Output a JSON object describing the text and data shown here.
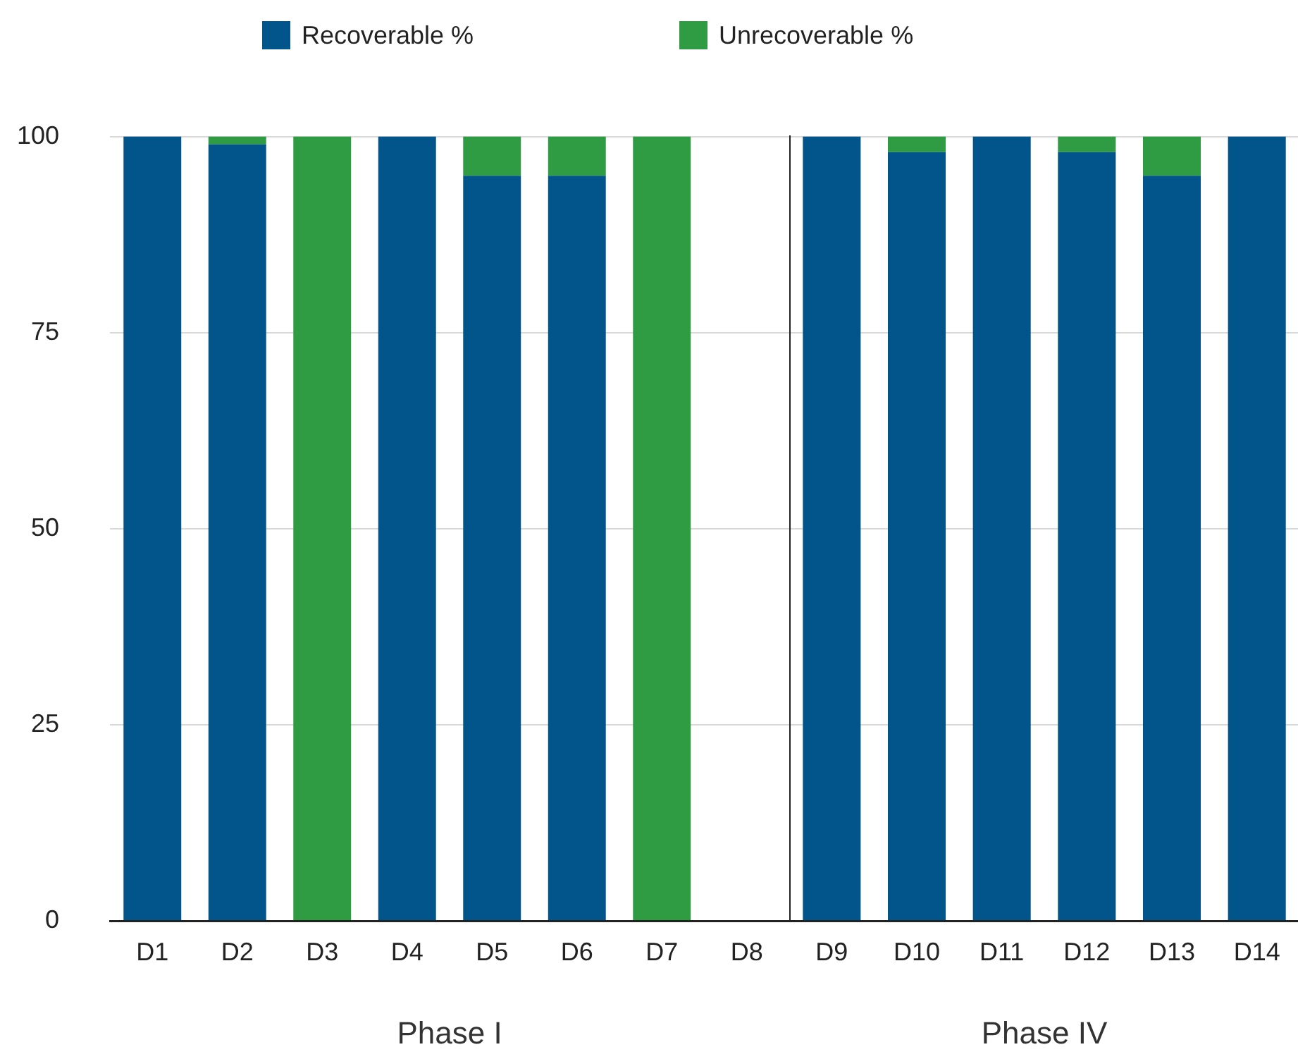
{
  "chart_data": [
    {
      "type": "bar",
      "stacked": true,
      "categories": [
        "D1",
        "D2",
        "D3",
        "D4",
        "D5",
        "D6",
        "D7",
        "D8"
      ],
      "xlabel": "Phase I",
      "series": [
        {
          "name": "Recoverable %",
          "color": "#02558b",
          "values": [
            100,
            99,
            0,
            100,
            95,
            95,
            0,
            null
          ]
        },
        {
          "name": "Unrecoverable %",
          "color": "#2f9b43",
          "values": [
            0,
            1,
            100,
            0,
            5,
            5,
            100,
            null
          ]
        }
      ],
      "ylim": [
        0,
        100
      ],
      "yticks": [
        0,
        25,
        50,
        75,
        100
      ],
      "grid": "y",
      "legend": "top"
    },
    {
      "type": "bar",
      "stacked": true,
      "categories": [
        "D9",
        "D10",
        "D11",
        "D12",
        "D13",
        "D14"
      ],
      "xlabel": "Phase IV",
      "series": [
        {
          "color": "#02558b",
          "values": [
            100,
            98,
            100,
            98,
            95,
            100
          ]
        },
        {
          "color": "#2f9b43",
          "values": [
            0,
            2,
            0,
            2,
            5,
            0
          ]
        }
      ],
      "ylim": [
        0,
        100
      ],
      "yticks": [
        0,
        25,
        50,
        75,
        100
      ],
      "grid": "y",
      "tick_labels": "x"
    }
  ]
}
